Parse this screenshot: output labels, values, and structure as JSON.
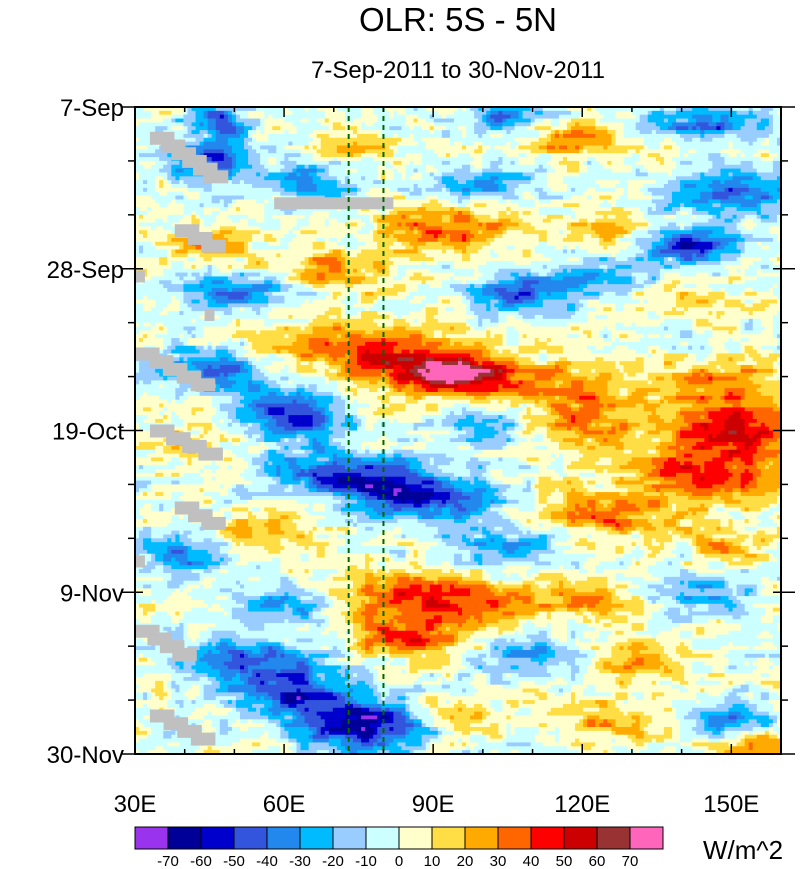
{
  "chart_data": {
    "type": "heatmap",
    "title": "OLR: 5S - 5N",
    "subtitle": "7-Sep-2011 to 30-Nov-2011",
    "xlabel": "",
    "ylabel": "",
    "x_range": [
      30,
      160
    ],
    "x_ticks": [
      {
        "value": 30,
        "label": "30E"
      },
      {
        "value": 60,
        "label": "60E"
      },
      {
        "value": 90,
        "label": "90E"
      },
      {
        "value": 120,
        "label": "120E"
      },
      {
        "value": 150,
        "label": "150E"
      }
    ],
    "y_range_days": [
      0,
      84
    ],
    "y_ticks": [
      {
        "day": 0,
        "label": "7-Sep"
      },
      {
        "day": 21,
        "label": "28-Sep"
      },
      {
        "day": 42,
        "label": "19-Oct"
      },
      {
        "day": 63,
        "label": "9-Nov"
      },
      {
        "day": 84,
        "label": "30-Nov"
      }
    ],
    "reference_lines_lon": [
      73,
      80
    ],
    "colorbar": {
      "units": "W/m^2",
      "levels": [
        -70,
        -60,
        -50,
        -40,
        -30,
        -20,
        -10,
        0,
        10,
        20,
        30,
        40,
        50,
        60,
        70
      ],
      "colors": [
        "#9933ee",
        "#000099",
        "#0000cc",
        "#3355dd",
        "#2288ee",
        "#00bbff",
        "#99ccff",
        "#ccffff",
        "#ffffcc",
        "#ffdd44",
        "#ffaa00",
        "#ff6600",
        "#ff0000",
        "#cc0000",
        "#993333",
        "#ff66bb"
      ],
      "labels": [
        "-70",
        "-60",
        "-50",
        "-40",
        "-30",
        "-20",
        "-10",
        "0",
        "10",
        "20",
        "30",
        "40",
        "50",
        "60",
        "70"
      ]
    },
    "missing_color": "#c0c0c0",
    "features": [
      {
        "lon": 47,
        "day": 2,
        "value": -45,
        "slope": 0.15,
        "sx": 4,
        "sy": 1.6
      },
      {
        "lon": 105,
        "day": 1.5,
        "value": -35,
        "slope": 0.2,
        "sx": 6,
        "sy": 1.4
      },
      {
        "lon": 145,
        "day": 2,
        "value": -40,
        "slope": 0.1,
        "sx": 8,
        "sy": 1.5
      },
      {
        "lon": 118,
        "day": 4,
        "value": 30,
        "slope": 0.15,
        "sx": 7,
        "sy": 1.6
      },
      {
        "lon": 75,
        "day": 5,
        "value": 22,
        "slope": 0.1,
        "sx": 6,
        "sy": 1.2
      },
      {
        "lon": 45,
        "day": 7,
        "value": -45,
        "slope": 0.25,
        "sx": 6,
        "sy": 1.8
      },
      {
        "lon": 65,
        "day": 10,
        "value": -40,
        "slope": 0.1,
        "sx": 6,
        "sy": 1.6
      },
      {
        "lon": 100,
        "day": 10,
        "value": -30,
        "slope": 0.15,
        "sx": 7,
        "sy": 1.4
      },
      {
        "lon": 150,
        "day": 11,
        "value": -45,
        "slope": 0.1,
        "sx": 9,
        "sy": 1.8
      },
      {
        "lon": 93,
        "day": 16,
        "value": 40,
        "slope": 0.2,
        "sx": 9,
        "sy": 1.9
      },
      {
        "lon": 125,
        "day": 16,
        "value": 25,
        "slope": 0.1,
        "sx": 6,
        "sy": 1.5
      },
      {
        "lon": 142,
        "day": 18,
        "value": -55,
        "slope": 0.05,
        "sx": 7,
        "sy": 1.6
      },
      {
        "lon": 45,
        "day": 18,
        "value": 28,
        "slope": 0.1,
        "sx": 6,
        "sy": 1.4
      },
      {
        "lon": 70,
        "day": 21,
        "value": 30,
        "slope": 0.1,
        "sx": 8,
        "sy": 1.8
      },
      {
        "lon": 50,
        "day": 24,
        "value": -40,
        "slope": 0.1,
        "sx": 8,
        "sy": 1.6
      },
      {
        "lon": 108,
        "day": 24,
        "value": -45,
        "slope": 0.1,
        "sx": 7,
        "sy": 1.6
      },
      {
        "lon": 125,
        "day": 22,
        "value": -30,
        "slope": 0.1,
        "sx": 6,
        "sy": 1.6
      },
      {
        "lon": 140,
        "day": 25,
        "value": 18,
        "slope": 0.1,
        "sx": 6,
        "sy": 1.5
      },
      {
        "lon": 80,
        "day": 32,
        "value": 45,
        "slope": 0.6,
        "sx": 14,
        "sy": 2.6
      },
      {
        "lon": 95,
        "day": 35,
        "value": 62,
        "slope": 0.4,
        "sx": 8,
        "sy": 1.8
      },
      {
        "lon": 118,
        "day": 36,
        "value": 25,
        "slope": 0.3,
        "sx": 8,
        "sy": 2.0
      },
      {
        "lon": 45,
        "day": 34,
        "value": -40,
        "slope": 0.3,
        "sx": 8,
        "sy": 1.8
      },
      {
        "lon": 148,
        "day": 36,
        "value": 30,
        "slope": 0.1,
        "sx": 10,
        "sy": 2.2
      },
      {
        "lon": 62,
        "day": 40,
        "value": -55,
        "slope": 0.3,
        "sx": 7,
        "sy": 2.2
      },
      {
        "lon": 150,
        "day": 42,
        "value": 55,
        "slope": 0.05,
        "sx": 9,
        "sy": 2.5
      },
      {
        "lon": 120,
        "day": 41,
        "value": 30,
        "slope": 0.1,
        "sx": 8,
        "sy": 2.4
      },
      {
        "lon": 100,
        "day": 41,
        "value": -25,
        "slope": 0.1,
        "sx": 6,
        "sy": 2.0
      },
      {
        "lon": 40,
        "day": 44,
        "value": 20,
        "slope": 0.1,
        "sx": 6,
        "sy": 1.6
      },
      {
        "lon": 75,
        "day": 48,
        "value": -50,
        "slope": 0.6,
        "sx": 12,
        "sy": 2.2
      },
      {
        "lon": 88,
        "day": 51,
        "value": -40,
        "slope": 0.5,
        "sx": 10,
        "sy": 2.0
      },
      {
        "lon": 145,
        "day": 48,
        "value": 45,
        "slope": 0.1,
        "sx": 10,
        "sy": 2.4
      },
      {
        "lon": 125,
        "day": 53,
        "value": 30,
        "slope": 0.1,
        "sx": 10,
        "sy": 2.4
      },
      {
        "lon": 55,
        "day": 55,
        "value": 20,
        "slope": 0.1,
        "sx": 8,
        "sy": 1.8
      },
      {
        "lon": 105,
        "day": 57,
        "value": -30,
        "slope": 0.2,
        "sx": 8,
        "sy": 1.8
      },
      {
        "lon": 150,
        "day": 57,
        "value": 20,
        "slope": 0.1,
        "sx": 6,
        "sy": 1.6
      },
      {
        "lon": 40,
        "day": 58,
        "value": -40,
        "slope": 0.1,
        "sx": 6,
        "sy": 1.8
      },
      {
        "lon": 90,
        "day": 64,
        "value": 45,
        "slope": 0.4,
        "sx": 12,
        "sy": 2.2
      },
      {
        "lon": 120,
        "day": 64,
        "value": 25,
        "slope": 0.2,
        "sx": 8,
        "sy": 2.0
      },
      {
        "lon": 60,
        "day": 65,
        "value": -30,
        "slope": 0.2,
        "sx": 6,
        "sy": 1.8
      },
      {
        "lon": 145,
        "day": 63,
        "value": -30,
        "slope": 0.1,
        "sx": 7,
        "sy": 1.8
      },
      {
        "lon": 85,
        "day": 69,
        "value": 40,
        "slope": 0.3,
        "sx": 9,
        "sy": 1.8
      },
      {
        "lon": 110,
        "day": 71,
        "value": -30,
        "slope": 0.1,
        "sx": 8,
        "sy": 2.0
      },
      {
        "lon": 130,
        "day": 72,
        "value": 25,
        "slope": 0.2,
        "sx": 8,
        "sy": 2.0
      },
      {
        "lon": 55,
        "day": 72,
        "value": -45,
        "slope": 0.3,
        "sx": 9,
        "sy": 2.0
      },
      {
        "lon": 75,
        "day": 80,
        "value": -68,
        "slope": 0.2,
        "sx": 9,
        "sy": 2.4
      },
      {
        "lon": 60,
        "day": 76,
        "value": -45,
        "slope": 0.2,
        "sx": 7,
        "sy": 1.8
      },
      {
        "lon": 150,
        "day": 80,
        "value": -35,
        "slope": 0.1,
        "sx": 7,
        "sy": 1.8
      },
      {
        "lon": 125,
        "day": 80,
        "value": 25,
        "slope": 0.1,
        "sx": 8,
        "sy": 1.8
      },
      {
        "lon": 95,
        "day": 79,
        "value": 25,
        "slope": 0.1,
        "sx": 6,
        "sy": 1.6
      },
      {
        "lon": 155,
        "day": 83,
        "value": 40,
        "slope": 0.0,
        "sx": 6,
        "sy": 1.5
      }
    ],
    "missing_segments": [
      {
        "lon_start": 33,
        "lon_end": 46,
        "day_start": 4,
        "day_end": 9
      },
      {
        "lon_start": 58,
        "lon_end": 82,
        "day_start": 12.5,
        "day_end": 12.5
      },
      {
        "lon_start": 38,
        "lon_end": 46,
        "day_start": 16,
        "day_end": 18
      },
      {
        "lon_start": 30,
        "lon_end": 32,
        "day_start": 22,
        "day_end": 22
      },
      {
        "lon_start": 44,
        "lon_end": 46,
        "day_start": 27,
        "day_end": 27
      },
      {
        "lon_start": 30,
        "lon_end": 44,
        "day_start": 32,
        "day_end": 36
      },
      {
        "lon_start": 33,
        "lon_end": 46,
        "day_start": 42,
        "day_end": 45
      },
      {
        "lon_start": 38,
        "lon_end": 46,
        "day_start": 52,
        "day_end": 54
      },
      {
        "lon_start": 30,
        "lon_end": 32,
        "day_start": 59,
        "day_end": 59
      },
      {
        "lon_start": 30,
        "lon_end": 40,
        "day_start": 68,
        "day_end": 71
      },
      {
        "lon_start": 33,
        "lon_end": 44,
        "day_start": 79,
        "day_end": 82
      }
    ]
  }
}
